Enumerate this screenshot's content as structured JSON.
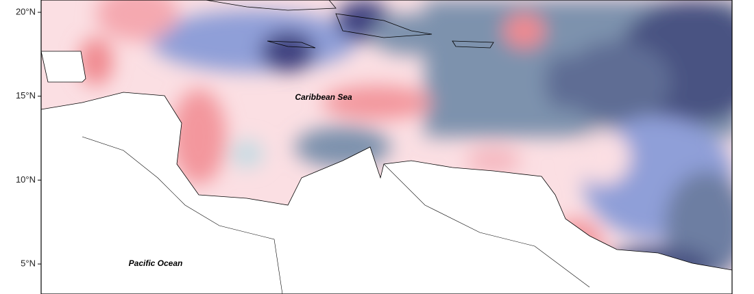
{
  "map": {
    "lat_labels": [
      "20°N",
      "15°N",
      "10°N",
      "5°N"
    ],
    "sea_labels": {
      "caribbean": "Caribbean Sea",
      "pacific": "Pacific Ocean"
    }
  }
}
